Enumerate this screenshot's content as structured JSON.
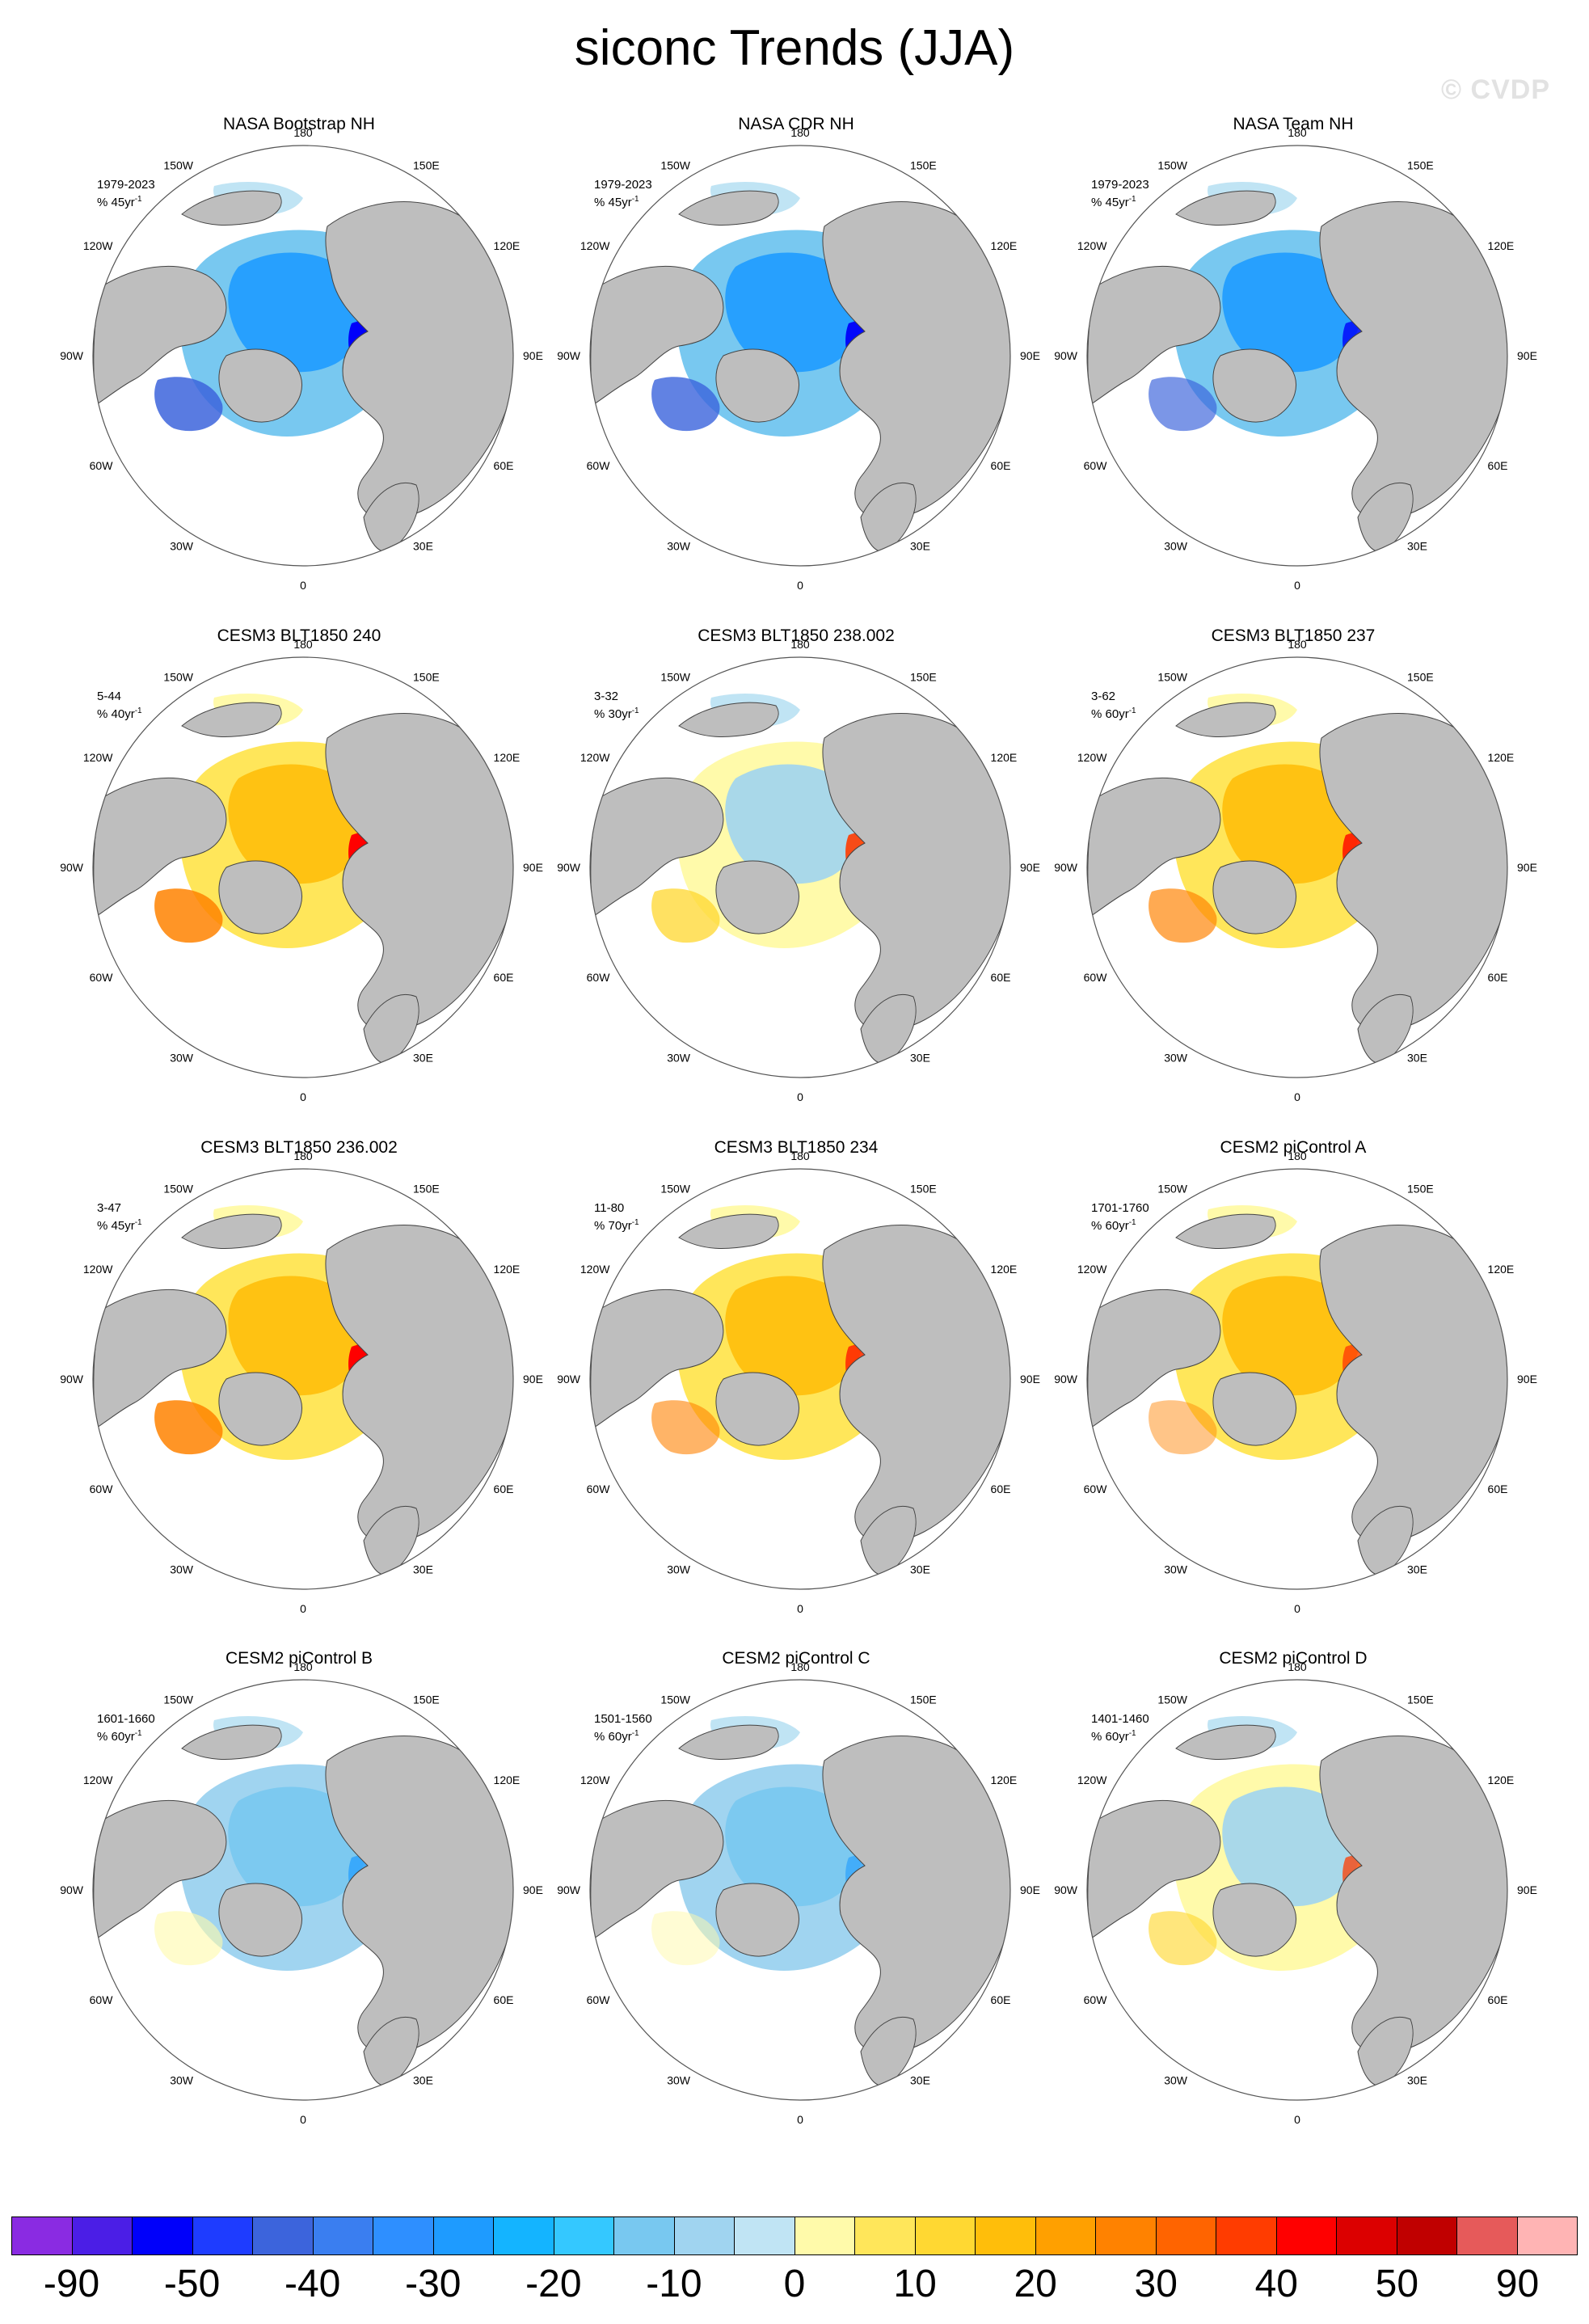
{
  "title": "siconc Trends (JJA)",
  "watermark": "© CVDP",
  "lon_labels": {
    "top": "180",
    "upper_left": "150W",
    "upper_right": "150E",
    "left_high": "120W",
    "right_high": "120E",
    "left_mid": "90W",
    "right_mid": "90E",
    "left_low": "60W",
    "right_low": "60E",
    "lower_left": "30W",
    "lower_right": "30E",
    "bottom": "0"
  },
  "panels": [
    {
      "title": "NASA Bootstrap NH",
      "period": "1979-2023",
      "unit_prefix": "% 45yr",
      "unit_exp": "-1",
      "pattern": "obs",
      "strength": 1.0
    },
    {
      "title": "NASA CDR NH",
      "period": "1979-2023",
      "unit_prefix": "% 45yr",
      "unit_exp": "-1",
      "pattern": "obs",
      "strength": 0.95
    },
    {
      "title": "NASA Team NH",
      "period": "1979-2023",
      "unit_prefix": "% 45yr",
      "unit_exp": "-1",
      "pattern": "obs",
      "strength": 0.8
    },
    {
      "title": "CESM3 BLT1850 240",
      "period": "5-44",
      "unit_prefix": "% 40yr",
      "unit_exp": "-1",
      "pattern": "warm",
      "strength": 1.0
    },
    {
      "title": "CESM3 BLT1850 238.002",
      "period": "3-32",
      "unit_prefix": "% 30yr",
      "unit_exp": "-1",
      "pattern": "mixed",
      "strength": 0.9
    },
    {
      "title": "CESM3 BLT1850 237",
      "period": "3-62",
      "unit_prefix": "% 60yr",
      "unit_exp": "-1",
      "pattern": "warm",
      "strength": 0.8
    },
    {
      "title": "CESM3 BLT1850 236.002",
      "period": "3-47",
      "unit_prefix": "% 45yr",
      "unit_exp": "-1",
      "pattern": "warm",
      "strength": 1.0
    },
    {
      "title": "CESM3 BLT1850 234",
      "period": "11-80",
      "unit_prefix": "% 70yr",
      "unit_exp": "-1",
      "pattern": "warm",
      "strength": 0.7
    },
    {
      "title": "CESM2 piControl A",
      "period": "1701-1760",
      "unit_prefix": "% 60yr",
      "unit_exp": "-1",
      "pattern": "warm",
      "strength": 0.55
    },
    {
      "title": "CESM2 piControl B",
      "period": "1601-1660",
      "unit_prefix": "% 60yr",
      "unit_exp": "-1",
      "pattern": "cool",
      "strength": 0.7
    },
    {
      "title": "CESM2 piControl C",
      "period": "1501-1560",
      "unit_prefix": "% 60yr",
      "unit_exp": "-1",
      "pattern": "cool",
      "strength": 0.6
    },
    {
      "title": "CESM2 piControl D",
      "period": "1401-1460",
      "unit_prefix": "% 60yr",
      "unit_exp": "-1",
      "pattern": "mixed",
      "strength": 0.75
    }
  ],
  "colorbar": {
    "colors": [
      "#8a2be2",
      "#4b1ee6",
      "#0000fa",
      "#1e3cff",
      "#3c64dc",
      "#3a7ef0",
      "#2e8fff",
      "#1e9bff",
      "#14b4ff",
      "#34c8ff",
      "#78c8f0",
      "#a0d4f0",
      "#c0e4f4",
      "#fffaaa",
      "#ffe65a",
      "#ffd832",
      "#ffbe0a",
      "#ffa000",
      "#ff8200",
      "#ff6400",
      "#ff3c00",
      "#ff0000",
      "#dc0000",
      "#c00000",
      "#e65a5a",
      "#ffb4b4"
    ],
    "labels": [
      "-90",
      "-50",
      "-40",
      "-30",
      "-20",
      "-10",
      "0",
      "10",
      "20",
      "30",
      "40",
      "50",
      "90"
    ]
  }
}
